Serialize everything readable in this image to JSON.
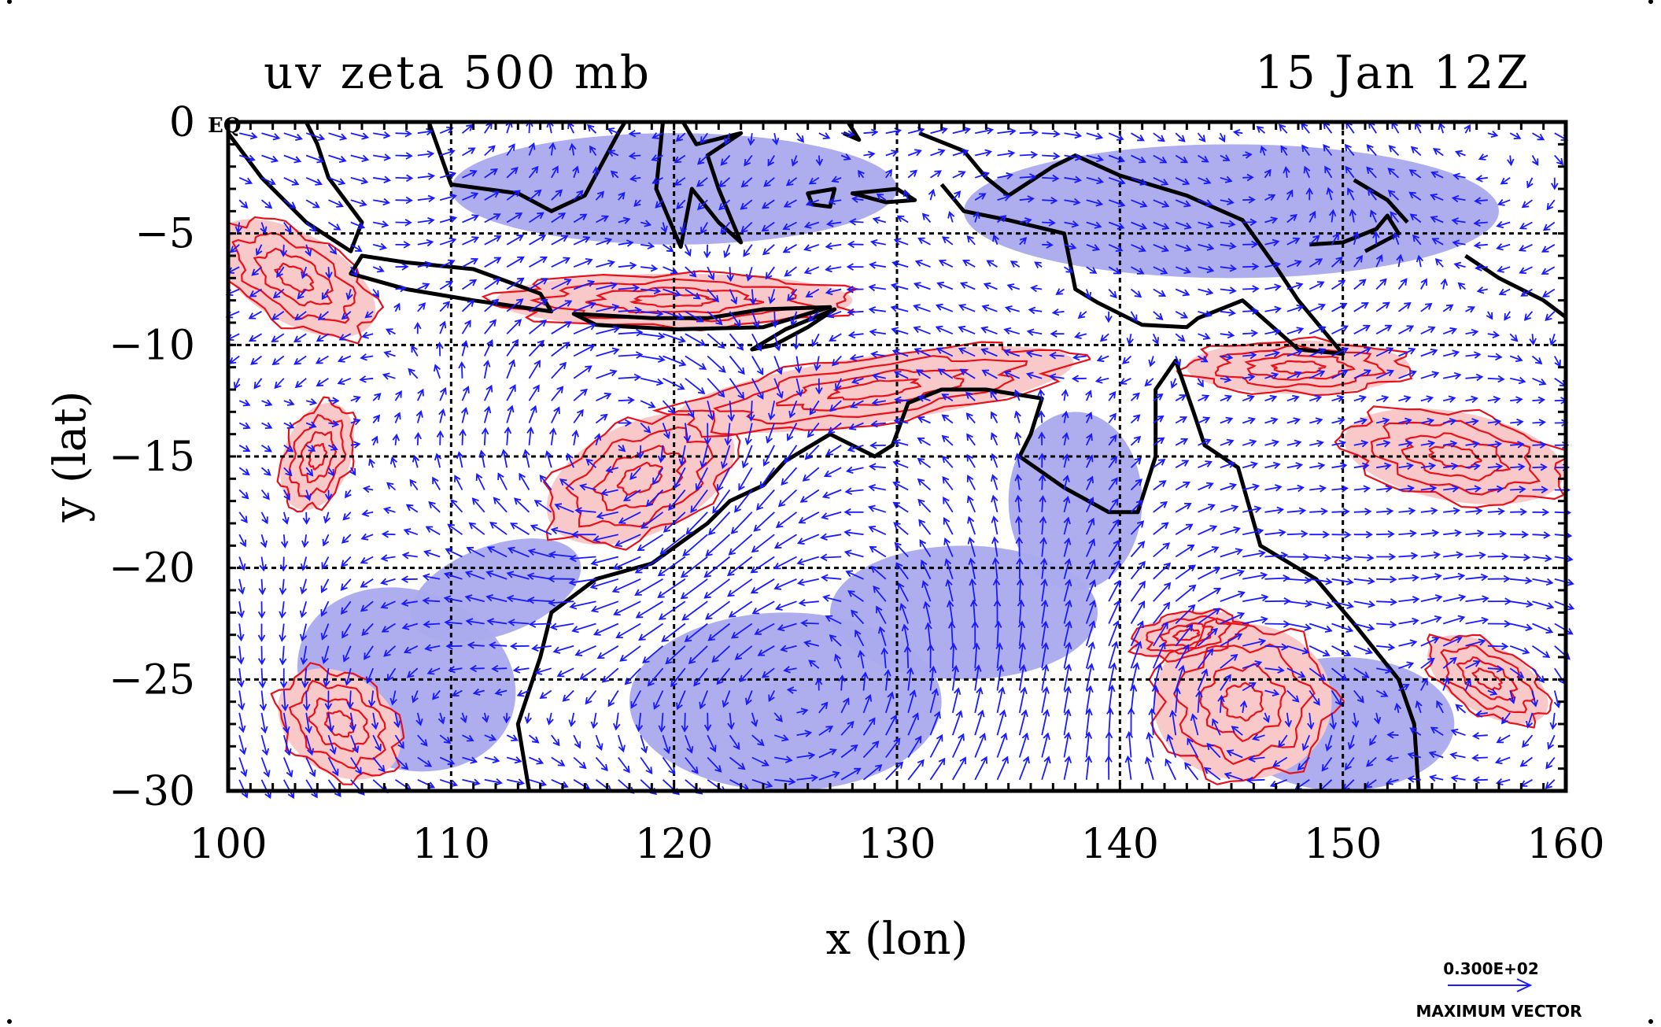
{
  "title_left": "uv zeta 500 mb",
  "title_right": "15 Jan 12Z",
  "chart_data": {
    "type": "vector-contour-map",
    "xlabel": "x (lon)",
    "ylabel": "y (lat)",
    "xlim": [
      100,
      160
    ],
    "ylim": [
      -30,
      0
    ],
    "x_ticks": [
      100,
      110,
      120,
      130,
      140,
      150,
      160
    ],
    "x_tick_labels": [
      "100",
      "110",
      "120",
      "130",
      "140",
      "150",
      "160"
    ],
    "y_ticks": [
      0,
      -5,
      -10,
      -15,
      -20,
      -25,
      -30
    ],
    "y_tick_labels": [
      "0",
      "−5",
      "−10",
      "−15",
      "−20",
      "−25",
      "−30"
    ],
    "grid": true,
    "equator_label": "EQ",
    "reference_vector": {
      "value_label": "0.300E+02",
      "caption": "MAXIMUM VECTOR"
    },
    "colors": {
      "positive_fill": "#f9c9c9",
      "positive_contour": "#e8101a",
      "negative_fill": "#aaaaee",
      "vector": "#1a1aff",
      "coast": "#000000"
    },
    "positive_regions": [
      {
        "lon": 118.5,
        "lat": -16,
        "rx": 4.5,
        "ry": 2.5,
        "rot": -25
      },
      {
        "lon": 145.5,
        "lat": -26,
        "rx": 4,
        "ry": 3.5,
        "rot": 0
      },
      {
        "lon": 156.5,
        "lat": -25,
        "rx": 3,
        "ry": 1.5,
        "rot": 30
      },
      {
        "lon": 155,
        "lat": -15,
        "rx": 5,
        "ry": 2,
        "rot": 10
      },
      {
        "lon": 105,
        "lat": -27,
        "rx": 3,
        "ry": 2.2,
        "rot": 35
      },
      {
        "lon": 104,
        "lat": -15,
        "rx": 1.5,
        "ry": 2.5,
        "rot": 20
      },
      {
        "lon": 103,
        "lat": -7,
        "rx": 4,
        "ry": 2,
        "rot": 30
      },
      {
        "lon": 148,
        "lat": -11,
        "rx": 5,
        "ry": 1.2,
        "rot": 0
      },
      {
        "lon": 143,
        "lat": -23,
        "rx": 2.5,
        "ry": 1,
        "rot": -10
      },
      {
        "lon": 129,
        "lat": -12,
        "rx": 9,
        "ry": 1.5,
        "rot": -8
      },
      {
        "lon": 120,
        "lat": -8,
        "rx": 8,
        "ry": 1.2,
        "rot": 0
      }
    ],
    "negative_regions": [
      {
        "lon": 125,
        "lat": -26,
        "rx": 7,
        "ry": 4,
        "rot": 0
      },
      {
        "lon": 150,
        "lat": -27,
        "rx": 5,
        "ry": 3,
        "rot": 0
      },
      {
        "lon": 108,
        "lat": -25,
        "rx": 5,
        "ry": 4,
        "rot": 20
      },
      {
        "lon": 133,
        "lat": -22,
        "rx": 6,
        "ry": 3,
        "rot": 0
      },
      {
        "lon": 120,
        "lat": -3,
        "rx": 10,
        "ry": 2.5,
        "rot": 0
      },
      {
        "lon": 145,
        "lat": -4,
        "rx": 12,
        "ry": 3,
        "rot": 0
      },
      {
        "lon": 138,
        "lat": -17,
        "rx": 3,
        "ry": 4,
        "rot": 0
      },
      {
        "lon": 112,
        "lat": -21,
        "rx": 4,
        "ry": 2,
        "rot": -20
      }
    ],
    "vortices": [
      {
        "lon": 125,
        "lat": -26,
        "strength": 1.2,
        "radius": 8,
        "sign": 1
      },
      {
        "lon": 118.5,
        "lat": -16,
        "strength": 0.9,
        "radius": 5,
        "sign": -1
      },
      {
        "lon": 145.5,
        "lat": -26,
        "strength": 0.8,
        "radius": 4,
        "sign": -1
      },
      {
        "lon": 156.5,
        "lat": -25,
        "strength": 0.6,
        "radius": 3,
        "sign": -1
      },
      {
        "lon": 108,
        "lat": -27,
        "strength": 0.7,
        "radius": 6,
        "sign": 1
      }
    ],
    "coastlines": [
      {
        "name": "australia-coast",
        "closed": false,
        "points": [
          [
            113.5,
            -30
          ],
          [
            113,
            -27
          ],
          [
            114,
            -24
          ],
          [
            114.5,
            -22
          ],
          [
            116.5,
            -20.5
          ],
          [
            119,
            -19.8
          ],
          [
            121.5,
            -18
          ],
          [
            122.5,
            -17
          ],
          [
            124,
            -16.3
          ],
          [
            125,
            -15.2
          ],
          [
            127,
            -14
          ],
          [
            129,
            -15
          ],
          [
            129.8,
            -14.5
          ],
          [
            130.5,
            -12.6
          ],
          [
            132,
            -12
          ],
          [
            134,
            -12
          ],
          [
            136.5,
            -12.4
          ],
          [
            136,
            -14
          ],
          [
            135.5,
            -15
          ],
          [
            137.5,
            -16.4
          ],
          [
            139.5,
            -17.5
          ],
          [
            140.8,
            -17.5
          ],
          [
            141.6,
            -15
          ],
          [
            141.6,
            -12
          ],
          [
            142.5,
            -10.7
          ],
          [
            143.3,
            -13
          ],
          [
            143.8,
            -14.5
          ],
          [
            145.3,
            -15.5
          ],
          [
            146.3,
            -19
          ],
          [
            148.8,
            -20.5
          ],
          [
            150.5,
            -22.5
          ],
          [
            152.5,
            -25
          ],
          [
            153.2,
            -27
          ],
          [
            153.4,
            -30
          ]
        ]
      },
      {
        "name": "sumatra-coast",
        "closed": false,
        "points": [
          [
            100,
            -0.5
          ],
          [
            101.5,
            -2.5
          ],
          [
            103.5,
            -4.5
          ],
          [
            105.5,
            -5.8
          ],
          [
            106,
            -4.5
          ],
          [
            104.5,
            -2.5
          ],
          [
            104,
            -1
          ],
          [
            103.5,
            0
          ]
        ]
      },
      {
        "name": "java",
        "closed": true,
        "points": [
          [
            105.5,
            -6.8
          ],
          [
            108,
            -7.5
          ],
          [
            111,
            -8
          ],
          [
            114.5,
            -8.5
          ],
          [
            114,
            -7.7
          ],
          [
            111,
            -6.6
          ],
          [
            108,
            -6.3
          ],
          [
            106,
            -6
          ]
        ]
      },
      {
        "name": "lesser-sunda",
        "closed": true,
        "points": [
          [
            115.5,
            -8.6
          ],
          [
            119,
            -8.8
          ],
          [
            121.5,
            -8.8
          ],
          [
            124,
            -8.4
          ],
          [
            127,
            -8.3
          ],
          [
            124,
            -9.2
          ],
          [
            120,
            -9.3
          ],
          [
            116.5,
            -9.1
          ]
        ]
      },
      {
        "name": "timor",
        "closed": true,
        "points": [
          [
            123.5,
            -10.2
          ],
          [
            125,
            -9.3
          ],
          [
            127.2,
            -8.4
          ],
          [
            126,
            -9.2
          ],
          [
            124.5,
            -10
          ]
        ]
      },
      {
        "name": "borneo-south",
        "closed": false,
        "points": [
          [
            109,
            0
          ],
          [
            110,
            -2.8
          ],
          [
            113,
            -3.2
          ],
          [
            114.5,
            -4
          ],
          [
            116,
            -3.3
          ],
          [
            117.5,
            -0.5
          ],
          [
            117.8,
            0
          ]
        ]
      },
      {
        "name": "sulawesi",
        "closed": false,
        "points": [
          [
            119.5,
            0
          ],
          [
            119.2,
            -3
          ],
          [
            120.3,
            -5.6
          ],
          [
            120.8,
            -3
          ],
          [
            122,
            -4.5
          ],
          [
            123,
            -5.4
          ],
          [
            122,
            -3
          ],
          [
            121.5,
            -1.5
          ],
          [
            123,
            -0.5
          ],
          [
            121,
            -1
          ],
          [
            120.4,
            0
          ]
        ]
      },
      {
        "name": "new-guinea",
        "closed": false,
        "points": [
          [
            131,
            -0.5
          ],
          [
            133,
            -1.3
          ],
          [
            134,
            -2.5
          ],
          [
            135,
            -3.3
          ],
          [
            137,
            -2
          ],
          [
            138,
            -1.5
          ],
          [
            140,
            -2.4
          ],
          [
            143,
            -3.3
          ],
          [
            145.5,
            -4.4
          ],
          [
            147,
            -6.5
          ],
          [
            148,
            -8
          ],
          [
            150,
            -10.4
          ],
          [
            148,
            -10.2
          ],
          [
            145.5,
            -8
          ],
          [
            143.5,
            -8.8
          ],
          [
            143,
            -9.2
          ],
          [
            141,
            -9.1
          ],
          [
            139,
            -8.1
          ],
          [
            138,
            -7.5
          ],
          [
            137.5,
            -5
          ],
          [
            135,
            -4.4
          ],
          [
            133,
            -4
          ],
          [
            132,
            -2.8
          ]
        ]
      },
      {
        "name": "new-britain",
        "closed": false,
        "points": [
          [
            148.5,
            -5.5
          ],
          [
            150,
            -5.4
          ],
          [
            151.5,
            -4.8
          ],
          [
            152,
            -4.2
          ],
          [
            152.5,
            -5
          ],
          [
            151,
            -5.8
          ]
        ]
      },
      {
        "name": "new-ireland",
        "closed": false,
        "points": [
          [
            150.5,
            -2.6
          ],
          [
            152,
            -3.5
          ],
          [
            152.9,
            -4.5
          ]
        ]
      },
      {
        "name": "seram",
        "closed": true,
        "points": [
          [
            128,
            -3.2
          ],
          [
            130,
            -3
          ],
          [
            130.8,
            -3.5
          ],
          [
            129.5,
            -3.6
          ]
        ]
      },
      {
        "name": "buru",
        "closed": true,
        "points": [
          [
            126,
            -3.2
          ],
          [
            127.2,
            -3
          ],
          [
            127,
            -3.8
          ],
          [
            126.2,
            -3.7
          ]
        ]
      },
      {
        "name": "halmahera",
        "closed": false,
        "points": [
          [
            127.8,
            0
          ],
          [
            128.3,
            -0.8
          ],
          [
            127.6,
            -0.5
          ]
        ]
      },
      {
        "name": "solomons",
        "closed": false,
        "points": [
          [
            155.5,
            -6
          ],
          [
            157,
            -7
          ],
          [
            159,
            -8
          ],
          [
            161,
            -9.5
          ]
        ]
      }
    ]
  }
}
